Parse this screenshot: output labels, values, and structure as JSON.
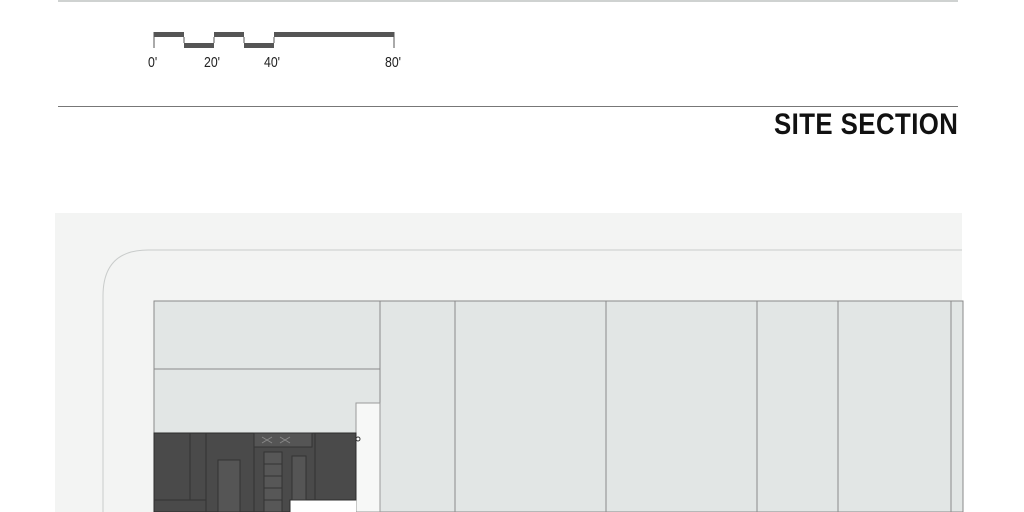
{
  "scale_bar": {
    "labels": [
      "0'",
      "20'",
      "40'",
      "80'"
    ]
  },
  "section_title": "SITE SECTION",
  "colors": {
    "background": "#ffffff",
    "site_ground": "#f3f4f3",
    "parcel_fill": "#e2e6e5",
    "building_dark": "#4a4a4a",
    "line": "#8a8a8a"
  },
  "plan": {
    "parcel_count": 6,
    "highlighted_building": "dark-building-footprint"
  }
}
